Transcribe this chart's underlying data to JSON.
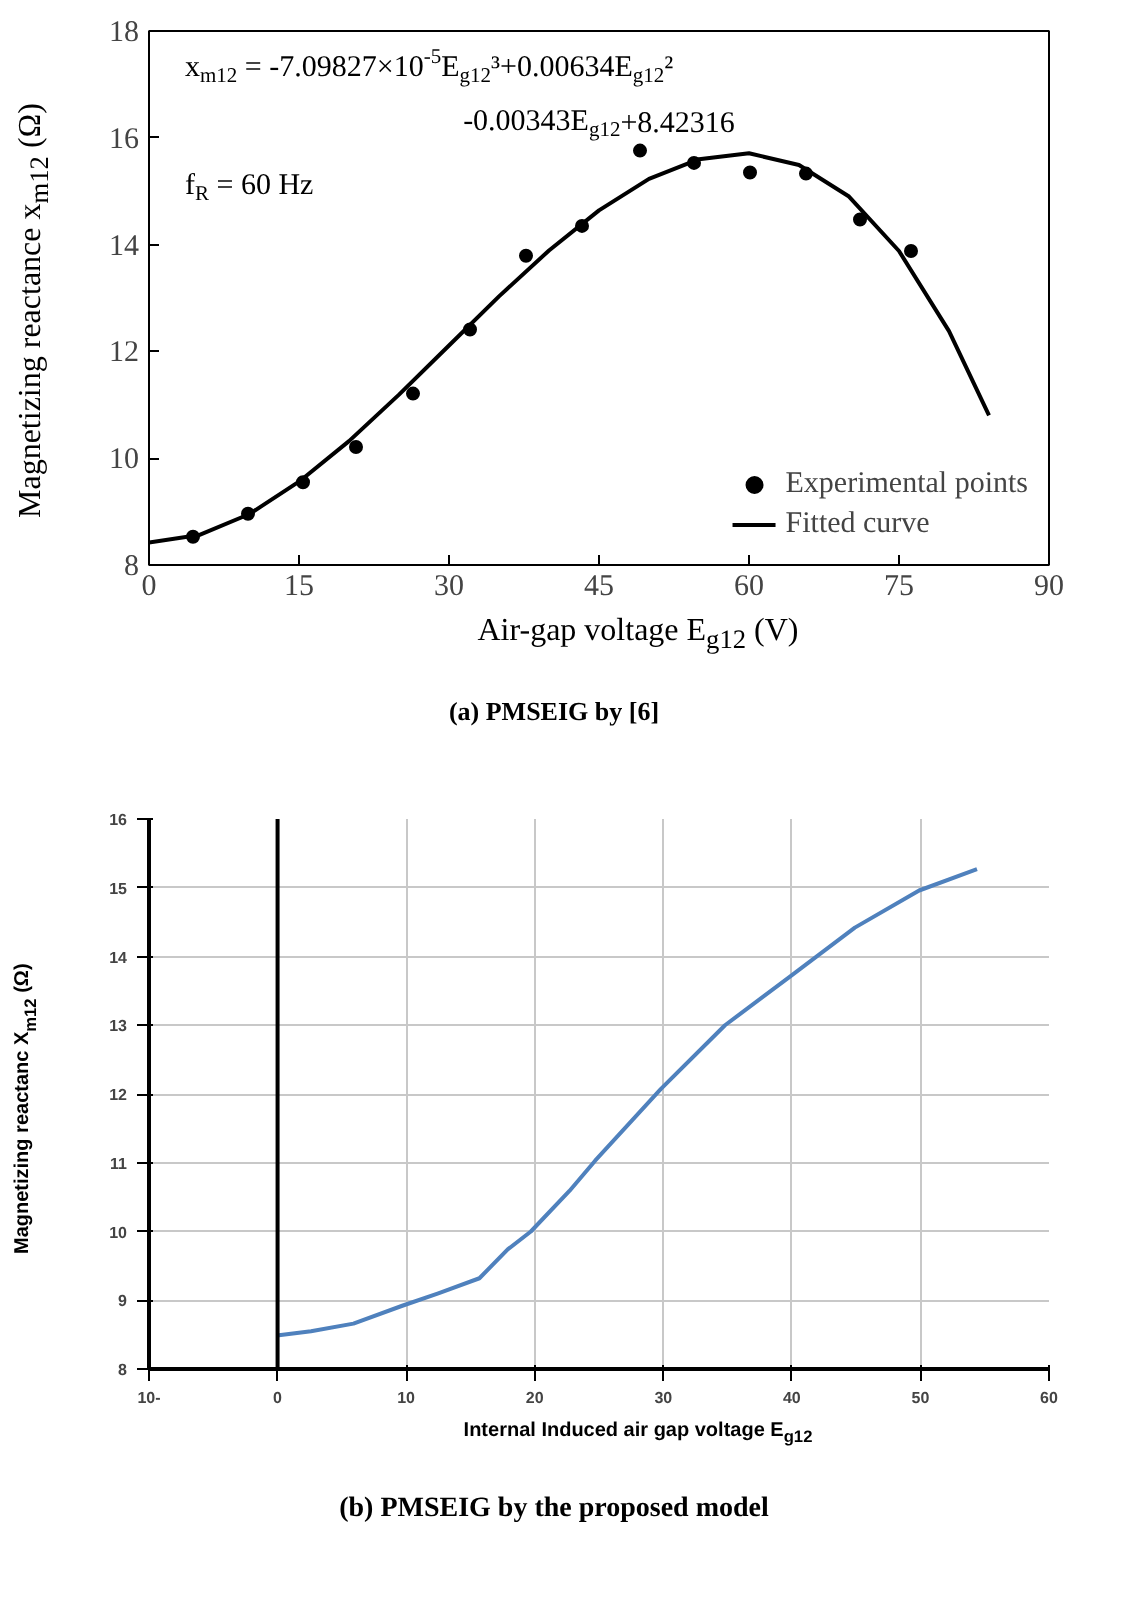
{
  "chart_data": [
    {
      "type": "scatter",
      "title": "(a) PMSEIG by [6]",
      "xlabel": "Air-gap voltage  E$_{g12}$ (V)",
      "ylabel": "Magnetizing reactance  x$_{m12}$ (Ω)",
      "annotations": [
        "x$_{m12}$ = -7.09827×10$^{-5}$E$_{g12}$³+0.00634E$_{g12}$²",
        "-0.00343E$_{g12}$+8.42316",
        "f$_{R}$ = 60 Hz"
      ],
      "series": [
        {
          "name": "Experimental points",
          "type": "scatter",
          "color": "#000000",
          "marker": "circle",
          "x": [
            4.4,
            9.9,
            15.4,
            20.7,
            26.4,
            32.1,
            37.7,
            43.3,
            49.1,
            54.5,
            60.1,
            65.7,
            71.1,
            76.2
          ],
          "values": [
            8.53,
            8.96,
            9.55,
            10.21,
            11.21,
            12.41,
            13.79,
            14.35,
            15.76,
            15.53,
            15.35,
            15.33,
            14.47,
            13.88
          ]
        },
        {
          "name": "Fitted curve",
          "type": "line",
          "color": "#000000",
          "x": [
            0,
            5,
            10,
            15,
            20,
            25,
            30,
            35,
            40,
            45,
            50,
            55,
            60,
            65,
            70,
            75,
            80,
            84
          ],
          "values": [
            8.42,
            8.56,
            8.95,
            9.56,
            10.32,
            11.19,
            12.11,
            13.03,
            13.89,
            14.64,
            15.23,
            15.6,
            15.71,
            15.49,
            14.9,
            13.88,
            12.38,
            10.8
          ]
        }
      ],
      "xlim": [
        0,
        90
      ],
      "ylim": [
        8,
        18
      ],
      "xticks": [
        0,
        15,
        30,
        45,
        60,
        75,
        90
      ],
      "yticks": [
        8,
        10,
        12,
        14,
        16,
        18
      ],
      "grid": false,
      "legend": "bottom right"
    },
    {
      "type": "line",
      "title": "(b) PMSEIG by the proposed model",
      "xlabel": "Internal Induced air gap voltage E$_{g12}$",
      "ylabel": "Magnetizing reactanc X$_{m12}$ (Ω)",
      "x": [
        0,
        0.1,
        2.6,
        5.9,
        9.7,
        12.5,
        15.7,
        17.9,
        19.7,
        22.7,
        24.7,
        29.8,
        34.8,
        39.8,
        44.9,
        49.9,
        54.4
      ],
      "series": [
        {
          "color": "#4f81bd",
          "values": [
            8.48,
            8.49,
            8.55,
            8.66,
            8.92,
            9.1,
            9.32,
            9.74,
            10.0,
            10.59,
            11.03,
            12.07,
            13.0,
            13.7,
            14.42,
            14.96,
            15.27
          ]
        }
      ],
      "xlim": [
        -10,
        60
      ],
      "ylim": [
        8,
        16
      ],
      "xticks": [
        {
          "value": -10,
          "label": "10-"
        },
        0,
        10,
        20,
        30,
        40,
        50,
        60
      ],
      "yticks": [
        8,
        9,
        10,
        11,
        12,
        13,
        14,
        15,
        16
      ],
      "grid": true,
      "line_style": "solid",
      "ref_lines": [
        {
          "axis": "x",
          "value": 0,
          "color": "#000000"
        }
      ]
    }
  ]
}
